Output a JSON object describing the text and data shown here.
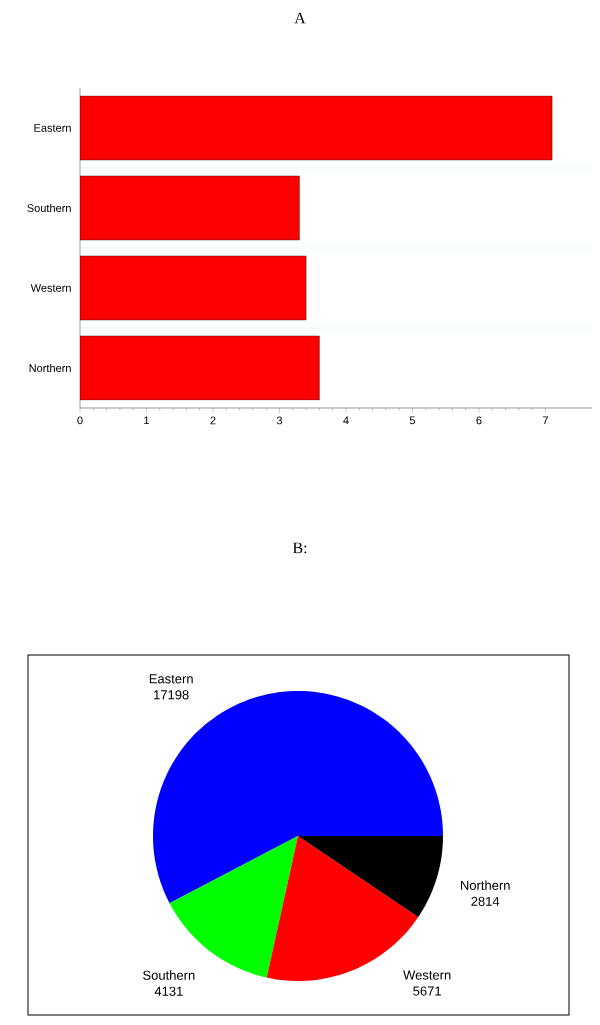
{
  "chart_data": [
    {
      "type": "bar",
      "title": "A",
      "orientation": "horizontal",
      "categories": [
        "Eastern",
        "Southern",
        "Western",
        "Northern"
      ],
      "values": [
        7.1,
        3.3,
        3.4,
        3.6
      ],
      "color": "#ff0000",
      "xlim": [
        0,
        7.7
      ],
      "xticks": [
        0,
        1,
        2,
        3,
        4,
        5,
        6,
        7
      ],
      "grid": "y"
    },
    {
      "type": "pie",
      "title": "B:",
      "categories": [
        "Eastern",
        "Southern",
        "Western",
        "Northern"
      ],
      "values": [
        17198,
        4131,
        5671,
        2814
      ],
      "colors": [
        "#0000ff",
        "#00ff00",
        "#ff0000",
        "#000000"
      ],
      "data_labels": true
    }
  ]
}
